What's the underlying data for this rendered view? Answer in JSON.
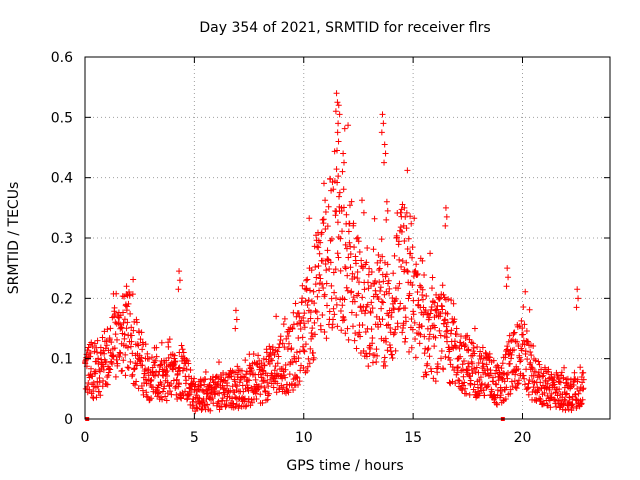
{
  "chart_data": {
    "type": "scatter",
    "title": "Day 354 of 2021, SRMTID for receiver flrs",
    "xlabel": "GPS time / hours",
    "ylabel": "SRMTID / TECUs",
    "xlim": [
      0,
      24
    ],
    "ylim": [
      0,
      0.6
    ],
    "xticks": [
      0,
      5,
      10,
      15,
      20
    ],
    "xtick_labels": [
      "0",
      "5",
      "10",
      "15",
      "20"
    ],
    "yticks": [
      0,
      0.1,
      0.2,
      0.3,
      0.4,
      0.5,
      0.6
    ],
    "ytick_labels": [
      "0",
      "0.1",
      "0.2",
      "0.3",
      "0.4",
      "0.5",
      "0.6"
    ],
    "grid": true,
    "marker": "+",
    "series_color": "#ff0000",
    "series": [
      {
        "name": "SRMTID",
        "envelope_x": [
          0,
          0.5,
          1,
          1.5,
          2,
          2.5,
          3,
          3.5,
          4,
          4.5,
          5,
          5.5,
          6,
          6.5,
          7,
          7.5,
          8,
          8.5,
          9,
          9.5,
          10,
          10.5,
          11,
          11.5,
          12,
          12.5,
          13,
          13.5,
          14,
          14.5,
          15,
          15.5,
          16,
          16.5,
          17,
          17.5,
          18,
          18.5,
          19,
          19.5,
          20,
          20.5,
          21,
          21.5,
          22,
          22.5,
          23
        ],
        "envelope_y": [
          0.08,
          0.08,
          0.1,
          0.13,
          0.14,
          0.1,
          0.07,
          0.06,
          0.07,
          0.08,
          0.04,
          0.04,
          0.045,
          0.05,
          0.05,
          0.055,
          0.06,
          0.08,
          0.09,
          0.1,
          0.14,
          0.2,
          0.25,
          0.3,
          0.25,
          0.2,
          0.17,
          0.18,
          0.17,
          0.24,
          0.19,
          0.14,
          0.13,
          0.14,
          0.1,
          0.09,
          0.08,
          0.07,
          0.05,
          0.1,
          0.11,
          0.07,
          0.05,
          0.05,
          0.04,
          0.05,
          0.05
        ],
        "peaks": [
          {
            "x": 1.9,
            "y": 0.22
          },
          {
            "x": 4.3,
            "y": 0.245
          },
          {
            "x": 6.9,
            "y": 0.18
          },
          {
            "x": 11.5,
            "y": 0.54
          },
          {
            "x": 11.6,
            "y": 0.52
          },
          {
            "x": 11.55,
            "y": 0.475
          },
          {
            "x": 11.8,
            "y": 0.44
          },
          {
            "x": 13.6,
            "y": 0.505
          },
          {
            "x": 13.7,
            "y": 0.455
          },
          {
            "x": 13.8,
            "y": 0.36
          },
          {
            "x": 14.6,
            "y": 0.35
          },
          {
            "x": 16.5,
            "y": 0.35
          },
          {
            "x": 19.3,
            "y": 0.25
          },
          {
            "x": 22.5,
            "y": 0.215
          }
        ],
        "zero_points": [
          {
            "x": 0.1,
            "y": 0
          },
          {
            "x": 19.1,
            "y": 0
          }
        ]
      }
    ]
  }
}
